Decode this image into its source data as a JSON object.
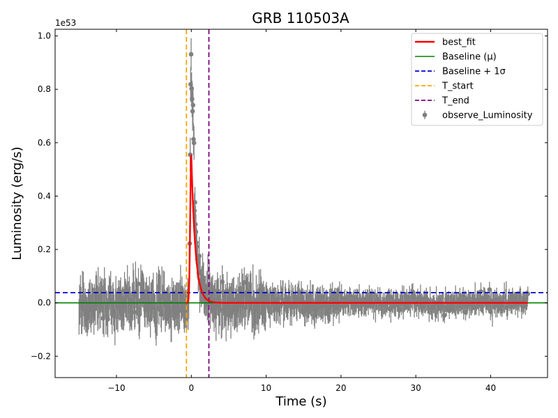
{
  "chart_data": {
    "type": "scatter",
    "title": "GRB 110503A",
    "xlabel": "Time (s)",
    "ylabel": "Luminosity (erg/s)",
    "y_offset_text": "1e53",
    "y_scale": 1e+53,
    "xlim": [
      -18.2,
      47.6
    ],
    "ylim": [
      -0.28,
      1.025
    ],
    "x_ticks": [
      -10,
      0,
      10,
      20,
      30,
      40
    ],
    "x_tick_labels": [
      "−10",
      "0",
      "10",
      "20",
      "30",
      "40"
    ],
    "y_ticks": [
      -0.2,
      0.0,
      0.2,
      0.4,
      0.6,
      0.8,
      1.0
    ],
    "y_tick_labels": [
      "−0.2",
      "0.0",
      "0.2",
      "0.4",
      "0.6",
      "0.8",
      "1.0"
    ],
    "grid": false,
    "legend_position": "top-right",
    "colors": {
      "observed": "#808080",
      "best_fit": "#ff0000",
      "baseline": "#008000",
      "baseline_sigma": "#0000cd",
      "t_start": "#ffa500",
      "t_end": "#800080"
    },
    "series": [
      {
        "name": "observe_Luminosity",
        "kind": "errorbar_scatter",
        "x_range": [
          -15,
          45
        ],
        "note": "dense noisy points; peak near t=0 reaching about 0.97"
      },
      {
        "name": "best_fit",
        "kind": "line",
        "peak_time": 0.0,
        "peak_value": 0.555,
        "rise_time": 0.2,
        "decay_time": 0.55,
        "x_range": [
          -0.7,
          45
        ]
      },
      {
        "name": "Baseline (μ)",
        "kind": "hline",
        "value": 0.0
      },
      {
        "name": "Baseline + 1σ",
        "kind": "hline",
        "value": 0.038
      },
      {
        "name": "T_start",
        "kind": "vline",
        "value": -0.65
      },
      {
        "name": "T_end",
        "kind": "vline",
        "value": 2.35
      }
    ],
    "legend": [
      "best_fit",
      "Baseline (μ)",
      "Baseline + 1σ",
      "T_start",
      "T_end",
      "observe_Luminosity"
    ]
  }
}
